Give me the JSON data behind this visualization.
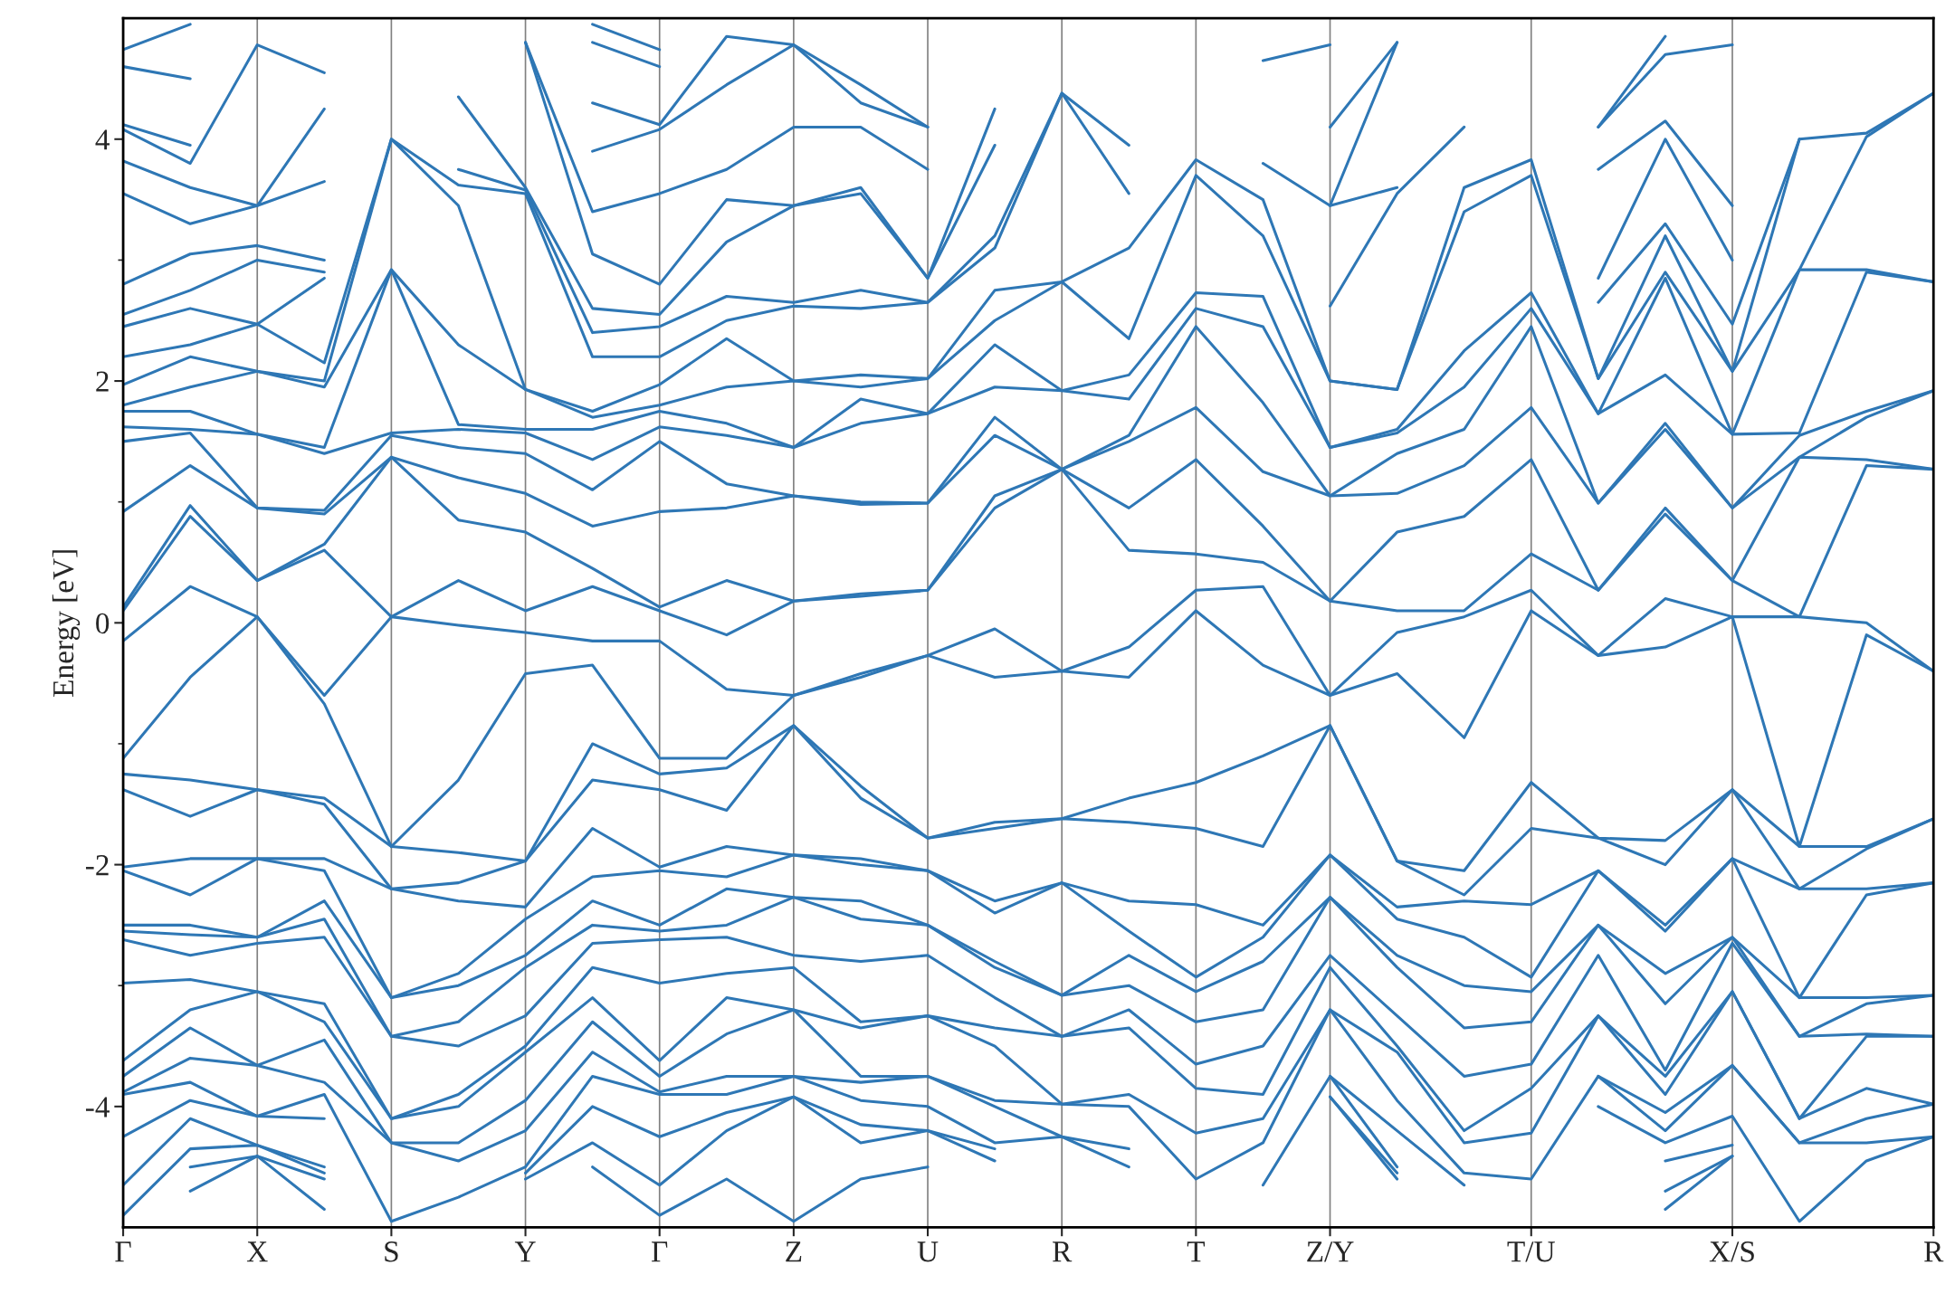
{
  "chart_data": {
    "type": "line",
    "ylabel": "Energy [eV]",
    "ylim": [
      -5,
      5
    ],
    "grid": "x",
    "categories": [
      "Γ",
      null,
      "X",
      null,
      "S",
      null,
      "Y",
      null,
      "Γ",
      null,
      "Z",
      null,
      "U",
      null,
      "R",
      null,
      "T",
      null,
      "Z/Y",
      null,
      null,
      "T/U",
      null,
      null,
      "X/S",
      null,
      null,
      "R"
    ],
    "yticks": [
      -4,
      {
        "value": -3,
        "label": null
      },
      -2,
      {
        "value": -1,
        "label": null
      },
      0,
      {
        "value": 1,
        "label": null
      },
      2,
      {
        "value": 3,
        "label": null
      },
      4
    ],
    "series": [
      {
        "color": "#2e77b5",
        "values": [
          -1.12,
          -0.45,
          0.05,
          -0.67,
          -1.85,
          -1.3,
          -0.42,
          -0.35,
          -1.12,
          -1.12,
          -0.6,
          -0.45,
          -0.27,
          -0.45,
          -0.4,
          -0.45,
          0.1,
          -0.35,
          -0.6,
          -0.42,
          -0.95,
          0.1,
          -0.27,
          -0.2,
          0.05,
          -1.85,
          -0.1,
          -0.4
        ]
      },
      {
        "color": "#2e77b5",
        "values": [
          -0.15,
          0.3,
          0.05,
          -0.6,
          0.05,
          -0.02,
          -0.08,
          -0.15,
          -0.15,
          -0.55,
          -0.6,
          -0.42,
          -0.27,
          -0.05,
          -0.4,
          -0.2,
          0.27,
          0.3,
          -0.6,
          -0.08,
          0.05,
          0.27,
          -0.27,
          0.2,
          0.05,
          0.05,
          0.0,
          -0.4
        ]
      },
      {
        "color": "#2e77b5",
        "values": [
          0.1,
          0.88,
          0.35,
          0.6,
          0.05,
          0.35,
          0.1,
          0.3,
          0.1,
          -0.1,
          0.18,
          0.22,
          0.27,
          0.95,
          1.27,
          0.6,
          0.57,
          0.5,
          0.18,
          0.1,
          0.1,
          0.57,
          0.27,
          0.9,
          0.35,
          0.05,
          1.3,
          1.27
        ]
      },
      {
        "color": "#2e77b5",
        "values": [
          0.13,
          0.97,
          0.35,
          0.65,
          1.37,
          0.85,
          0.75,
          0.45,
          0.13,
          0.35,
          0.18,
          0.24,
          0.27,
          1.05,
          1.27,
          0.95,
          1.35,
          0.8,
          0.18,
          0.75,
          0.88,
          1.35,
          0.27,
          0.95,
          0.35,
          1.37,
          1.35,
          1.27
        ]
      },
      {
        "color": "#2e77b5",
        "values": [
          0.92,
          1.3,
          0.95,
          0.9,
          1.37,
          1.2,
          1.07,
          0.8,
          0.92,
          0.95,
          1.05,
          0.98,
          0.99,
          1.55,
          1.27,
          1.5,
          1.78,
          1.25,
          1.05,
          1.07,
          1.3,
          1.78,
          0.99,
          1.6,
          0.95,
          1.37,
          1.7,
          1.92
        ]
      },
      {
        "color": "#2e77b5",
        "values": [
          1.5,
          1.57,
          0.95,
          0.93,
          1.55,
          1.45,
          1.4,
          1.1,
          1.5,
          1.15,
          1.05,
          1.0,
          0.99,
          1.7,
          1.27,
          1.55,
          2.45,
          1.82,
          1.05,
          1.4,
          1.6,
          2.45,
          0.99,
          1.65,
          0.95,
          1.55,
          1.75,
          1.92
        ]
      },
      {
        "color": "#2e77b5",
        "values": [
          1.62,
          1.6,
          1.56,
          1.4,
          1.57,
          1.6,
          1.57,
          1.35,
          1.62,
          1.55,
          1.45,
          1.65,
          1.73,
          1.95,
          1.92,
          1.85,
          2.6,
          2.45,
          1.45,
          1.57,
          1.95,
          2.6,
          1.73,
          2.05,
          1.56,
          1.57,
          2.9,
          2.82
        ]
      },
      {
        "color": "#2e77b5",
        "values": [
          1.75,
          1.75,
          1.56,
          1.45,
          2.92,
          1.64,
          1.6,
          1.6,
          1.75,
          1.65,
          1.45,
          1.85,
          1.73,
          2.3,
          1.92,
          2.05,
          2.73,
          2.7,
          1.45,
          1.6,
          2.25,
          2.73,
          1.73,
          2.85,
          1.56,
          2.92,
          2.92,
          2.82
        ]
      },
      {
        "color": "#2e77b5",
        "values": [
          1.8,
          1.95,
          2.08,
          1.95,
          2.92,
          2.3,
          1.93,
          1.7,
          1.8,
          1.95,
          2.0,
          1.95,
          2.02,
          2.5,
          2.82,
          2.35,
          3.7,
          3.2,
          2.0,
          1.93,
          3.4,
          3.7,
          2.02,
          2.9,
          2.08,
          2.92,
          4.02,
          4.38
        ]
      },
      {
        "color": "#2e77b5",
        "values": [
          1.97,
          2.2,
          2.08,
          2.0,
          4.0,
          3.45,
          1.93,
          1.75,
          1.97,
          2.35,
          2.0,
          2.05,
          2.02,
          2.75,
          2.82,
          3.1,
          3.83,
          3.5,
          2.0,
          1.93,
          3.6,
          3.83,
          2.02,
          3.2,
          2.08,
          4.0,
          4.05,
          4.38
        ]
      },
      {
        "color": "#2e77b5",
        "values": [
          2.2,
          2.3,
          2.47,
          2.15,
          4.0,
          3.62,
          3.55,
          2.2,
          2.2,
          2.5,
          2.62,
          2.6,
          2.65,
          3.1,
          4.38,
          3.55,
          null,
          null,
          2.62,
          3.55,
          4.1,
          null,
          2.65,
          3.3,
          2.47,
          4.0,
          null,
          null
        ]
      },
      {
        "color": "#2e77b5",
        "values": [
          2.45,
          2.6,
          2.47,
          2.85,
          null,
          3.75,
          3.58,
          2.4,
          2.45,
          2.7,
          2.65,
          2.75,
          2.65,
          3.2,
          4.38,
          3.95,
          null,
          null,
          null,
          null,
          null,
          null,
          null,
          null,
          null,
          null,
          null,
          null
        ]
      },
      {
        "color": "#2e77b5",
        "values": [
          2.55,
          2.75,
          3.0,
          2.9,
          null,
          4.35,
          3.6,
          2.6,
          2.55,
          3.15,
          3.45,
          3.55,
          2.85,
          3.95,
          null,
          null,
          null,
          3.8,
          3.45,
          3.6,
          null,
          null,
          2.85,
          4.0,
          3.0,
          null,
          null,
          null
        ]
      },
      {
        "color": "#2e77b5",
        "values": [
          2.8,
          3.05,
          3.12,
          3.0,
          null,
          null,
          4.8,
          3.05,
          2.8,
          3.5,
          3.45,
          3.6,
          2.85,
          4.25,
          null,
          null,
          null,
          null,
          3.45,
          4.8,
          null,
          null,
          null,
          null,
          null,
          null,
          null,
          null
        ]
      },
      {
        "color": "#2e77b5",
        "values": [
          3.55,
          3.3,
          3.45,
          3.65,
          null,
          null,
          4.8,
          3.4,
          3.55,
          3.75,
          4.1,
          4.1,
          3.75,
          null,
          null,
          null,
          null,
          null,
          4.1,
          4.8,
          null,
          null,
          3.75,
          4.15,
          3.45,
          null,
          null,
          null
        ]
      },
      {
        "color": "#2e77b5",
        "values": [
          3.82,
          3.6,
          3.45,
          4.25,
          null,
          null,
          null,
          null,
          null,
          null,
          null,
          null,
          null,
          null,
          null,
          null,
          null,
          null,
          null,
          null,
          null,
          null,
          null,
          null,
          null,
          null,
          null,
          null
        ]
      },
      {
        "color": "#2e77b5",
        "values": [
          4.08,
          3.8,
          4.78,
          4.55,
          null,
          null,
          null,
          3.9,
          4.08,
          4.45,
          4.78,
          4.3,
          4.1,
          null,
          null,
          null,
          null,
          4.65,
          4.78,
          null,
          null,
          null,
          4.1,
          4.7,
          4.78,
          null,
          null,
          null
        ]
      },
      {
        "color": "#2e77b5",
        "values": [
          4.12,
          3.95,
          null,
          null,
          null,
          null,
          null,
          4.3,
          4.12,
          4.85,
          4.78,
          4.45,
          4.1,
          null,
          null,
          null,
          null,
          null,
          null,
          null,
          null,
          null,
          4.1,
          4.85,
          null,
          null,
          null,
          null
        ]
      },
      {
        "color": "#2e77b5",
        "values": [
          4.6,
          4.5,
          null,
          null,
          null,
          null,
          null,
          4.8,
          4.6,
          null,
          null,
          null,
          null,
          null,
          null,
          null,
          null,
          null,
          null,
          null,
          null,
          null,
          null,
          null,
          null,
          null,
          null,
          null
        ]
      },
      {
        "color": "#2e77b5",
        "values": [
          4.74,
          4.95,
          null,
          null,
          null,
          null,
          null,
          4.95,
          4.74,
          null,
          null,
          null,
          null,
          null,
          null,
          null,
          null,
          null,
          null,
          null,
          null,
          null,
          null,
          null,
          null,
          null,
          null,
          null
        ]
      },
      {
        "color": "#2e77b5",
        "values": [
          -1.25,
          -1.3,
          -1.38,
          -1.45,
          -1.85,
          -1.9,
          -1.97,
          -1.0,
          -1.25,
          -1.2,
          -0.85,
          -1.35,
          -1.78,
          -1.65,
          -1.62,
          -1.45,
          -1.32,
          -1.1,
          -0.85,
          -1.97,
          -2.05,
          -1.32,
          -1.78,
          -1.8,
          -1.38,
          -1.85,
          -1.85,
          -1.62
        ]
      },
      {
        "color": "#2e77b5",
        "values": [
          -1.38,
          -1.6,
          -1.38,
          -1.5,
          -2.2,
          -2.15,
          -1.97,
          -1.3,
          -1.38,
          -1.55,
          -0.85,
          -1.45,
          -1.78,
          -1.7,
          -1.62,
          -1.65,
          -1.7,
          -1.85,
          -0.85,
          -1.97,
          -2.25,
          -1.7,
          -1.78,
          -2.0,
          -1.38,
          -2.2,
          -1.87,
          -1.62
        ]
      },
      {
        "color": "#2e77b5",
        "values": [
          -2.02,
          -1.95,
          -1.95,
          -1.95,
          -2.2,
          -2.3,
          -2.35,
          -1.7,
          -2.02,
          -1.85,
          -1.92,
          -1.95,
          -2.05,
          -2.3,
          -2.15,
          -2.3,
          -2.33,
          -2.5,
          -1.92,
          -2.35,
          -2.3,
          -2.33,
          -2.05,
          -2.5,
          -1.95,
          -2.2,
          -2.2,
          -2.15
        ]
      },
      {
        "color": "#2e77b5",
        "values": [
          -2.05,
          -2.25,
          -1.95,
          -2.05,
          -3.1,
          -2.9,
          -2.45,
          -2.1,
          -2.05,
          -2.1,
          -1.92,
          -2.0,
          -2.05,
          -2.4,
          -2.15,
          -2.55,
          -2.93,
          -2.6,
          -1.92,
          -2.45,
          -2.6,
          -2.93,
          -2.05,
          -2.55,
          -1.95,
          -3.1,
          -2.25,
          -2.15
        ]
      },
      {
        "color": "#2e77b5",
        "values": [
          -2.5,
          -2.5,
          -2.6,
          -2.3,
          -3.1,
          -3.0,
          -2.75,
          -2.3,
          -2.5,
          -2.2,
          -2.27,
          -2.3,
          -2.5,
          -2.8,
          -3.08,
          -2.75,
          -3.05,
          -2.8,
          -2.27,
          -2.75,
          -3.0,
          -3.05,
          -2.5,
          -2.9,
          -2.6,
          -3.1,
          -3.1,
          -3.08
        ]
      },
      {
        "color": "#2e77b5",
        "values": [
          -2.55,
          -2.58,
          -2.6,
          -2.45,
          -3.42,
          -3.3,
          -2.85,
          -2.5,
          -2.55,
          -2.5,
          -2.27,
          -2.45,
          -2.5,
          -2.85,
          -3.08,
          -3.0,
          -3.3,
          -3.2,
          -2.27,
          -2.85,
          -3.35,
          -3.3,
          -2.5,
          -3.15,
          -2.6,
          -3.42,
          -3.15,
          -3.08
        ]
      },
      {
        "color": "#2e77b5",
        "values": [
          -2.62,
          -2.75,
          -2.65,
          -2.6,
          -3.42,
          -3.5,
          -3.25,
          -2.65,
          -2.62,
          -2.6,
          -2.75,
          -2.8,
          -2.75,
          -3.1,
          -3.42,
          -3.2,
          -3.65,
          -3.5,
          -2.75,
          -3.25,
          -3.75,
          -3.65,
          -2.75,
          -3.7,
          -2.65,
          -3.42,
          -3.4,
          -3.42
        ]
      },
      {
        "color": "#2e77b5",
        "values": [
          -2.98,
          -2.95,
          -3.05,
          -3.15,
          -4.1,
          -3.9,
          -3.5,
          -2.85,
          -2.98,
          -2.9,
          -2.85,
          -3.3,
          -3.25,
          -3.35,
          -3.42,
          -3.35,
          -3.85,
          -3.9,
          -2.85,
          -3.5,
          -4.2,
          -3.85,
          -3.25,
          -3.75,
          -3.05,
          -4.1,
          -3.42,
          -3.42
        ]
      },
      {
        "color": "#2e77b5",
        "values": [
          -3.62,
          -3.2,
          -3.05,
          -3.3,
          -4.1,
          -4.0,
          -3.55,
          -3.1,
          -3.62,
          -3.1,
          -3.2,
          -3.35,
          -3.25,
          -3.5,
          -3.98,
          -3.9,
          -4.22,
          -4.1,
          -3.2,
          -3.55,
          -4.3,
          -4.22,
          -3.25,
          -3.9,
          -3.05,
          -4.1,
          -3.85,
          -3.98
        ]
      },
      {
        "color": "#2e77b5",
        "values": [
          -3.75,
          -3.35,
          -3.66,
          -3.45,
          -4.3,
          -4.3,
          -3.95,
          -3.3,
          -3.75,
          -3.4,
          -3.2,
          -3.75,
          -3.75,
          -3.95,
          -3.98,
          -4.0,
          -4.6,
          -4.3,
          -3.2,
          -3.95,
          -4.55,
          -4.6,
          -3.75,
          -4.05,
          -3.66,
          -4.3,
          -4.1,
          -3.98
        ]
      },
      {
        "color": "#2e77b5",
        "values": [
          -3.88,
          -3.6,
          -3.66,
          -3.8,
          -4.3,
          -4.45,
          -4.2,
          -3.55,
          -3.88,
          -3.75,
          -3.75,
          -3.8,
          -3.75,
          -4.0,
          -4.25,
          -4.35,
          null,
          -4.65,
          -3.75,
          -4.2,
          -4.65,
          null,
          -3.75,
          -4.2,
          -3.66,
          -4.3,
          -4.3,
          -4.25
        ]
      },
      {
        "color": "#2e77b5",
        "values": [
          -3.9,
          -3.8,
          -4.08,
          -3.9,
          -4.95,
          -4.75,
          -4.5,
          -3.75,
          -3.9,
          -3.9,
          -3.75,
          -3.95,
          -4.0,
          -4.3,
          -4.25,
          -4.5,
          null,
          null,
          -3.75,
          -4.5,
          null,
          null,
          -4.0,
          -4.3,
          -4.08,
          -4.95,
          -4.45,
          -4.25
        ]
      },
      {
        "color": "#2e77b5",
        "values": [
          -4.25,
          -3.95,
          -4.08,
          -4.1,
          null,
          null,
          -4.55,
          -4.0,
          -4.25,
          -4.05,
          -3.92,
          -4.15,
          -4.2,
          -4.35,
          null,
          null,
          null,
          null,
          -3.92,
          -4.55,
          null,
          null,
          null,
          null,
          null,
          null,
          null,
          null
        ]
      },
      {
        "color": "#2e77b5",
        "values": [
          -4.65,
          -4.1,
          -4.32,
          -4.5,
          null,
          null,
          -4.6,
          -4.3,
          -4.65,
          -4.2,
          -3.92,
          -4.3,
          -4.2,
          -4.45,
          null,
          null,
          null,
          null,
          -3.92,
          -4.6,
          null,
          null,
          null,
          -4.45,
          -4.32,
          null,
          null,
          null
        ]
      },
      {
        "color": "#2e77b5",
        "values": [
          -4.9,
          -4.35,
          -4.32,
          -4.55,
          null,
          null,
          null,
          -4.5,
          -4.9,
          -4.6,
          -4.95,
          -4.6,
          -4.5,
          null,
          null,
          null,
          null,
          null,
          null,
          null,
          null,
          null,
          null,
          null,
          null,
          null,
          null,
          null
        ]
      },
      {
        "color": "#2e77b5",
        "values": [
          null,
          -4.5,
          -4.41,
          -4.6,
          null,
          null,
          null,
          null,
          null,
          null,
          null,
          null,
          null,
          null,
          null,
          null,
          null,
          null,
          null,
          null,
          null,
          null,
          null,
          -4.7,
          -4.41,
          null,
          null,
          null
        ]
      },
      {
        "color": "#2e77b5",
        "values": [
          null,
          -4.7,
          -4.41,
          -4.85,
          null,
          null,
          null,
          null,
          null,
          null,
          null,
          null,
          null,
          null,
          null,
          null,
          null,
          null,
          null,
          null,
          null,
          null,
          null,
          -4.85,
          -4.41,
          null,
          null,
          null
        ]
      }
    ]
  }
}
